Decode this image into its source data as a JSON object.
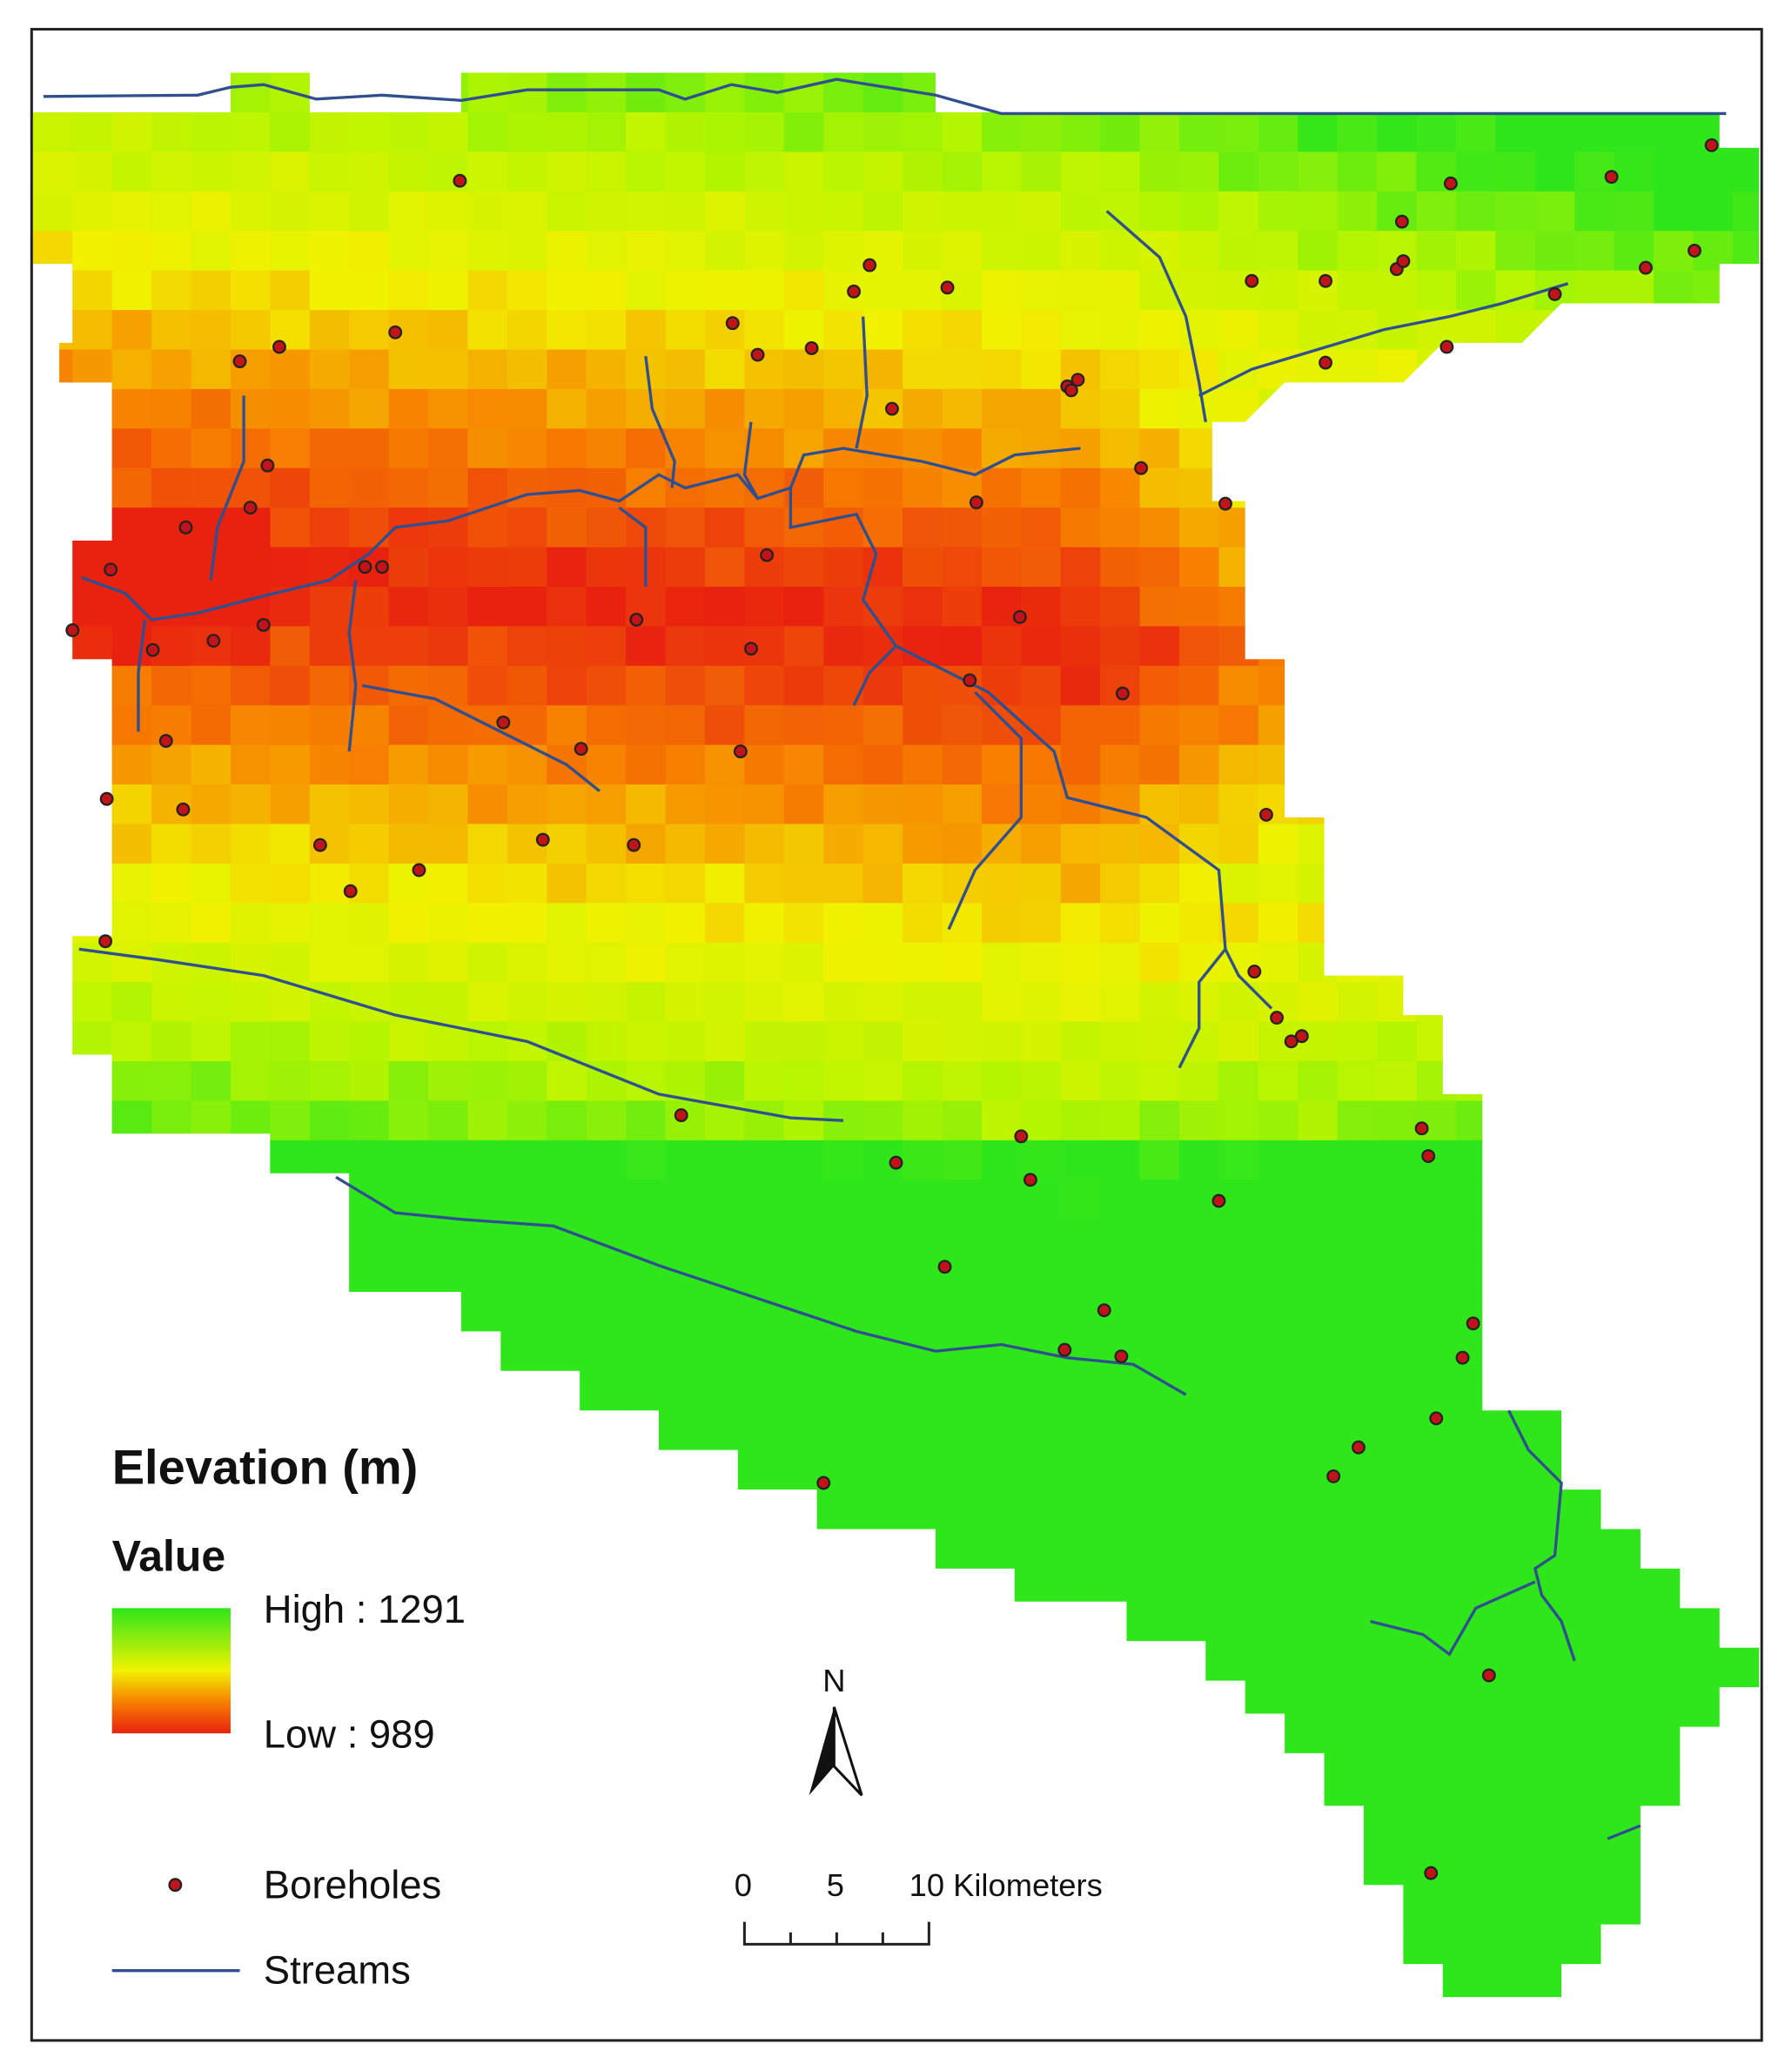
{
  "legend": {
    "title": "Elevation (m)",
    "subtitle": "Value",
    "high": "High : 1291",
    "low": "Low : 989",
    "items": [
      "Boreholes",
      "Streams"
    ]
  },
  "north_arrow": "N",
  "scale_bar": {
    "labels": [
      "0",
      "5",
      "10 Kilometers"
    ]
  }
}
